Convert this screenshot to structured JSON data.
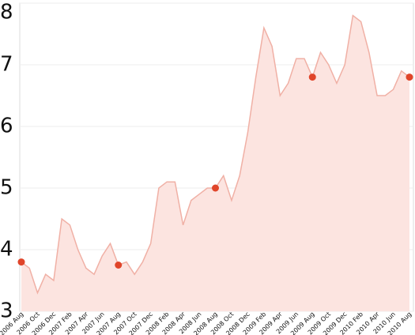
{
  "chart_data": {
    "type": "area",
    "categories": [
      "2006 Aug",
      null,
      "2006 Oct",
      null,
      "2006 Dec",
      null,
      "2007 Feb",
      null,
      "2007 Apr",
      null,
      "2007 Jun",
      null,
      "2007 Aug",
      null,
      "2007 Oct",
      null,
      "2007 Dec",
      null,
      "2008 Feb",
      null,
      "2008 Apr",
      null,
      "2008 Jun",
      null,
      "2008 Aug",
      null,
      "2008 Oct",
      null,
      "2008 Dec",
      null,
      "2009 Feb",
      null,
      "2009 Apr",
      null,
      "2009 Jun",
      null,
      "2009 Aug",
      null,
      "2009 Oct",
      null,
      "2009 Dec",
      null,
      "2010 Feb",
      null,
      "2010 Apr",
      null,
      "2010 Jun",
      null,
      "2010 Aug"
    ],
    "values": [
      3.8,
      3.7,
      3.3,
      3.6,
      3.5,
      4.5,
      4.4,
      4.0,
      3.7,
      3.6,
      3.9,
      4.1,
      3.75,
      3.8,
      3.6,
      3.8,
      4.1,
      5.0,
      5.1,
      5.1,
      4.4,
      4.8,
      4.9,
      5.0,
      5.0,
      5.2,
      4.8,
      5.2,
      5.9,
      6.8,
      7.6,
      7.3,
      6.5,
      6.7,
      7.1,
      7.1,
      6.8,
      7.2,
      7.0,
      6.7,
      7.0,
      7.8,
      7.7,
      7.2,
      6.5,
      6.5,
      6.6,
      6.9,
      6.8
    ],
    "color": "#f0b0a5",
    "fill": "#fce4e0",
    "markers": {
      "color": "#e0452a",
      "every": 12
    },
    "ylim": [
      3,
      8
    ],
    "yticks": [
      3,
      4,
      5,
      6,
      7,
      8
    ],
    "grid": true
  }
}
